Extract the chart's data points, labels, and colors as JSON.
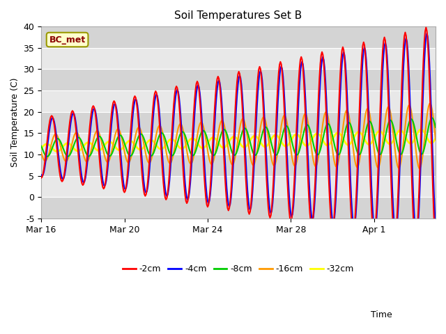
{
  "title": "Soil Temperatures Set B",
  "xlabel": "Time",
  "ylabel": "Soil Temperature (C)",
  "ylim": [
    -5,
    40
  ],
  "annotation": "BC_met",
  "legend_labels": [
    "-2cm",
    "-4cm",
    "-8cm",
    "-16cm",
    "-32cm"
  ],
  "line_colors": [
    "#ff0000",
    "#0000ff",
    "#00cc00",
    "#ff9900",
    "#ffff00"
  ],
  "line_widths": [
    1.5,
    1.5,
    1.5,
    1.5,
    2.0
  ],
  "bg_color": "#ffffff",
  "plot_bg_color": "#e8e8e8",
  "grid_color": "#ffffff",
  "band_color_light": "#d8d8d8",
  "band_color_dark": "#e8e8e8",
  "xtick_labels": [
    "Mar 16",
    "Mar 20",
    "Mar 24",
    "Mar 28",
    "Apr 1"
  ],
  "ytick_positions": [
    -5,
    0,
    5,
    10,
    15,
    20,
    25,
    30,
    35,
    40
  ],
  "n_days": 19.0,
  "start_day": 75
}
